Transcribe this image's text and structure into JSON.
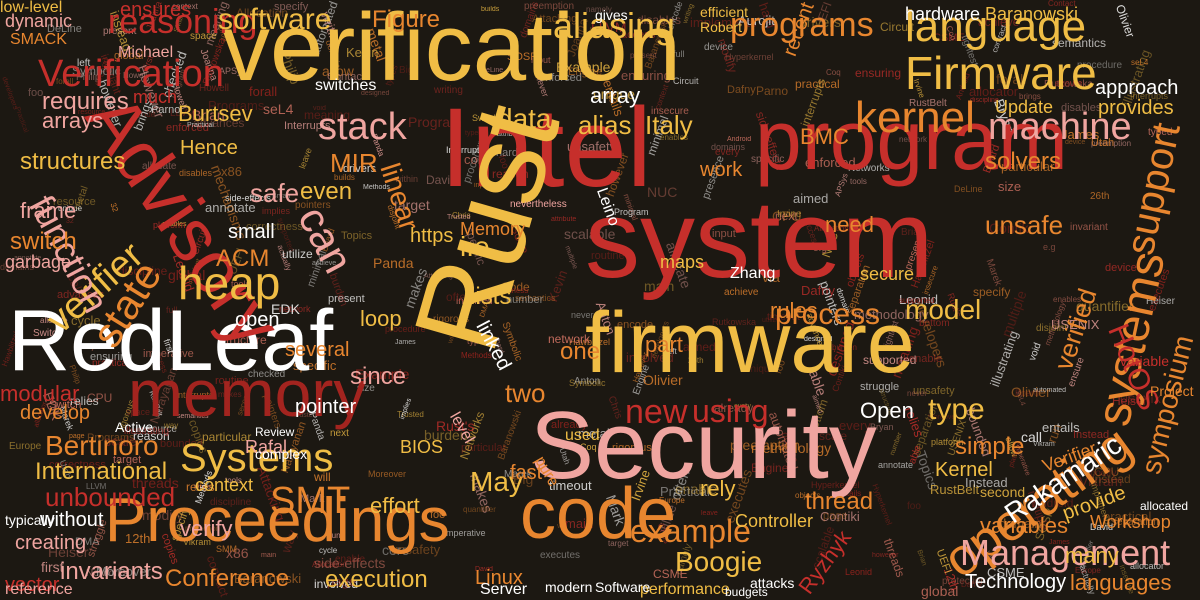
{
  "palette": {
    "background": "#1c1812",
    "red": "#c62f2b",
    "dark_red": "#a3241f",
    "orange": "#e8862f",
    "yellow": "#f0bd45",
    "pink": "#f0a5a0",
    "salmon": "#e07a6a",
    "white": "#ffffff"
  },
  "words": [
    {
      "text": "verification",
      "color": "yellow"
    },
    {
      "text": "Intel",
      "color": "red"
    },
    {
      "text": "Rust",
      "color": "yellow"
    },
    {
      "text": "system",
      "color": "red"
    },
    {
      "text": "program",
      "color": "red"
    },
    {
      "text": "firmware",
      "color": "yellow"
    },
    {
      "text": "Security",
      "color": "pink"
    },
    {
      "text": "RedLeaf",
      "color": "white"
    },
    {
      "text": "Advisory",
      "color": "red"
    },
    {
      "text": "memory",
      "color": "dark_red"
    },
    {
      "text": "code",
      "color": "orange"
    },
    {
      "text": "Proceedings",
      "color": "orange"
    },
    {
      "text": "operating",
      "color": "orange"
    },
    {
      "text": "Firmware",
      "color": "yellow"
    },
    {
      "text": "language",
      "color": "yellow"
    },
    {
      "text": "kernel",
      "color": "orange"
    },
    {
      "text": "machine",
      "color": "pink"
    },
    {
      "text": "Verification",
      "color": "red"
    },
    {
      "text": "stack",
      "color": "pink"
    },
    {
      "text": "heap",
      "color": "yellow"
    },
    {
      "text": "state",
      "color": "orange"
    },
    {
      "text": "verifier",
      "color": "yellow"
    },
    {
      "text": "function",
      "color": "pink"
    },
    {
      "text": "Systems",
      "color": "yellow"
    },
    {
      "text": "SMT",
      "color": "orange"
    },
    {
      "text": "Management",
      "color": "pink"
    },
    {
      "text": "example",
      "color": "orange"
    },
    {
      "text": "process",
      "color": "orange"
    },
    {
      "text": "model",
      "color": "yellow"
    },
    {
      "text": "systems",
      "color": "orange"
    },
    {
      "text": "support",
      "color": "orange"
    },
    {
      "text": "reasoning",
      "color": "red"
    },
    {
      "text": "software",
      "color": "yellow"
    },
    {
      "text": "aliasing",
      "color": "yellow"
    },
    {
      "text": "programs",
      "color": "orange"
    },
    {
      "text": "Figure",
      "color": "orange"
    },
    {
      "text": "Boogie",
      "color": "yellow"
    },
    {
      "text": "unbounded",
      "color": "red"
    },
    {
      "text": "Bertinoro",
      "color": "orange"
    },
    {
      "text": "International",
      "color": "yellow"
    },
    {
      "text": "Conference",
      "color": "orange"
    },
    {
      "text": "execution",
      "color": "yellow"
    },
    {
      "text": "invariants",
      "color": "pink"
    },
    {
      "text": "variables",
      "color": "orange"
    },
    {
      "text": "Workshop",
      "color": "orange"
    },
    {
      "text": "Technology",
      "color": "white"
    },
    {
      "text": "Rakamaric",
      "color": "white"
    },
    {
      "text": "verified",
      "color": "orange"
    },
    {
      "text": "HotOS",
      "color": "red"
    },
    {
      "text": "symposium",
      "color": "orange"
    },
    {
      "text": "Open",
      "color": "white"
    },
    {
      "text": "type",
      "color": "yellow"
    },
    {
      "text": "new",
      "color": "red"
    },
    {
      "text": "using",
      "color": "red"
    },
    {
      "text": "data",
      "color": "yellow"
    },
    {
      "text": "alias",
      "color": "yellow"
    },
    {
      "text": "Italy",
      "color": "yellow"
    },
    {
      "text": "safe",
      "color": "pink"
    },
    {
      "text": "MIR",
      "color": "orange"
    },
    {
      "text": "even",
      "color": "yellow"
    },
    {
      "text": "ACM",
      "color": "orange"
    },
    {
      "text": "i.e",
      "color": "yellow"
    },
    {
      "text": "can",
      "color": "pink"
    },
    {
      "text": "linear",
      "color": "orange"
    },
    {
      "text": "Burtsev",
      "color": "yellow"
    },
    {
      "text": "requires",
      "color": "pink"
    },
    {
      "text": "arrays",
      "color": "pink"
    },
    {
      "text": "structures",
      "color": "yellow"
    },
    {
      "text": "frame",
      "color": "pink"
    },
    {
      "text": "switch",
      "color": "orange"
    },
    {
      "text": "garbage",
      "color": "pink"
    },
    {
      "text": "modular",
      "color": "red"
    },
    {
      "text": "develop",
      "color": "orange"
    },
    {
      "text": "context",
      "color": "yellow"
    },
    {
      "text": "Rafal",
      "color": "pink"
    },
    {
      "text": "verify",
      "color": "pink"
    },
    {
      "text": "May",
      "color": "yellow"
    },
    {
      "text": "effort",
      "color": "yellow"
    },
    {
      "text": "creating",
      "color": "pink"
    },
    {
      "text": "without",
      "color": "white"
    },
    {
      "text": "vector",
      "color": "red"
    },
    {
      "text": "loop",
      "color": "yellow"
    },
    {
      "text": "since",
      "color": "pink"
    },
    {
      "text": "two",
      "color": "orange"
    },
    {
      "text": "one",
      "color": "orange"
    },
    {
      "text": "linked",
      "color": "white"
    },
    {
      "text": "open",
      "color": "white"
    },
    {
      "text": "several",
      "color": "orange"
    },
    {
      "text": "small",
      "color": "white"
    },
    {
      "text": "lists",
      "color": "yellow"
    },
    {
      "text": "part",
      "color": "orange"
    },
    {
      "text": "rules",
      "color": "orange"
    },
    {
      "text": "rely",
      "color": "yellow"
    },
    {
      "text": "fast",
      "color": "orange"
    },
    {
      "text": "thread",
      "color": "orange"
    },
    {
      "text": "simple",
      "color": "orange"
    },
    {
      "text": "Ryzhyk",
      "color": "red"
    },
    {
      "text": "Linux",
      "color": "orange"
    },
    {
      "text": "many",
      "color": "yellow"
    },
    {
      "text": "languages",
      "color": "orange"
    },
    {
      "text": "provide",
      "color": "yellow"
    },
    {
      "text": "Kernel",
      "color": "yellow"
    },
    {
      "text": "unsafe",
      "color": "orange"
    },
    {
      "text": "need",
      "color": "orange"
    },
    {
      "text": "BMC",
      "color": "orange"
    },
    {
      "text": "solvers",
      "color": "orange"
    },
    {
      "text": "hardware",
      "color": "white"
    },
    {
      "text": "Baranowski",
      "color": "yellow"
    },
    {
      "text": "approach",
      "color": "white"
    },
    {
      "text": "provides",
      "color": "yellow"
    },
    {
      "text": "Update",
      "color": "yellow"
    },
    {
      "text": "switches",
      "color": "white"
    },
    {
      "text": "array",
      "color": "white"
    },
    {
      "text": "recent",
      "color": "orange"
    },
    {
      "text": "ensures",
      "color": "red"
    },
    {
      "text": "dynamic",
      "color": "pink"
    },
    {
      "text": "low-level",
      "color": "yellow"
    },
    {
      "text": "much",
      "color": "red"
    },
    {
      "text": "Hence",
      "color": "yellow"
    },
    {
      "text": "pointer",
      "color": "white"
    },
    {
      "text": "work",
      "color": "orange"
    },
    {
      "text": "https",
      "color": "yellow"
    },
    {
      "text": "maps",
      "color": "yellow"
    },
    {
      "text": "secure",
      "color": "yellow"
    },
    {
      "text": "Zhang",
      "color": "white"
    },
    {
      "text": "BIOS",
      "color": "yellow"
    },
    {
      "text": "level",
      "color": "pink"
    },
    {
      "text": "used",
      "color": "yellow"
    },
    {
      "text": "Verifier",
      "color": "orange"
    },
    {
      "text": "Controller",
      "color": "yellow"
    },
    {
      "text": "Server",
      "color": "white"
    },
    {
      "text": "reference",
      "color": "pink"
    },
    {
      "text": "Leino",
      "color": "white"
    },
    {
      "text": "Memory",
      "color": "orange"
    },
    {
      "text": "SMACK",
      "color": "orange"
    },
    {
      "text": "Michael",
      "color": "pink"
    },
    {
      "text": "performance",
      "color": "yellow"
    },
    {
      "text": "attacks",
      "color": "white"
    },
    {
      "text": "budgets",
      "color": "white"
    },
    {
      "text": "modern",
      "color": "white"
    },
    {
      "text": "Software",
      "color": "white"
    },
    {
      "text": "allocated",
      "color": "white"
    },
    {
      "text": "complex",
      "color": "white"
    },
    {
      "text": "Review",
      "color": "white"
    },
    {
      "text": "gives",
      "color": "white"
    },
    {
      "text": "nevertheless",
      "color": "pink"
    },
    {
      "text": "efficient",
      "color": "yellow"
    },
    {
      "text": "Robert",
      "color": "yellow"
    },
    {
      "text": "typically",
      "color": "white"
    },
    {
      "text": "Active",
      "color": "white"
    },
    {
      "text": "Project",
      "color": "orange"
    },
    {
      "text": "variable",
      "color": "red"
    },
    {
      "text": "pure",
      "color": "orange"
    }
  ],
  "filler_words": [
    "Baranowski",
    "allocate",
    "pointers",
    "quantifier",
    "Engine",
    "minimal",
    "device",
    "particular",
    "present",
    "Panda",
    "foo",
    "CSME",
    "disables",
    "objects",
    "SOSP",
    "enforced",
    "semantics",
    "Android",
    "allocator",
    "metal",
    "Hawblitzel",
    "Europe",
    "designed",
    "resource",
    "rigorous",
    "automated",
    "separation",
    "USENIX",
    "Networks",
    "Leonid",
    "Attacking",
    "advances",
    "LLVM",
    "tools",
    "annotate",
    "invariant",
    "page",
    "typed",
    "achieve",
    "domain",
    "modify",
    "burden",
    "Vikram",
    "Circuit",
    "procedure",
    "methodology",
    "enables",
    "Marek",
    "unique",
    "access",
    "network",
    "Joanna",
    "global",
    "Bryan",
    "utilize",
    "David",
    "UEFI",
    "never",
    "second",
    "input",
    "CPU",
    "specific",
    "multiple",
    "discipline",
    "domains",
    "Symbolic",
    "Moreover",
    "imperative",
    "RustBelt",
    "Hyperkernel",
    "specify",
    "preemption",
    "however",
    "Practical",
    "developers",
    "Switch",
    "Board",
    "Coq",
    "seL4",
    "Interrupts",
    "Methods",
    "Trusted",
    "platform",
    "correctness",
    "writing",
    "Program",
    "meaning",
    "ensuring",
    "Dafny",
    "Philip",
    "Contiki",
    "entails",
    "Olivier",
    "Utah",
    "Irvine",
    "Chris",
    "hard",
    "disjoint",
    "first",
    "main",
    "forall",
    "DeLine",
    "Brian",
    "relies",
    "Heiser",
    "James",
    "Howell",
    "practical",
    "insecure",
    "target",
    "every",
    "executes",
    "illustrating",
    "enable",
    "Rutkowska",
    "unsafety",
    "supported",
    "Allocation",
    "involved",
    "aimed",
    "makes",
    "side-effects",
    "DMA",
    "routine",
    "implements",
    "reason",
    "left",
    "presence",
    "bounded",
    "timeout",
    "Topics",
    "ensure",
    "contract",
    "namely",
    "EDK",
    "Mark",
    "often",
    "instead",
    "allow",
    "scale",
    "encode",
    "builds",
    "call",
    "way",
    "will",
    "via",
    "run",
    "able",
    "number",
    "x86",
    "Rust's",
    "types",
    "void",
    "full",
    "Code",
    "Anton",
    "12th",
    "26th",
    "Kevin",
    "However",
    "Parno",
    "attribute",
    "Example",
    "already",
    "bottom",
    "threads",
    "copies",
    "brings",
    "struggle",
    "Instead",
    "space",
    "leave",
    "tightest",
    "mechanisms",
    "Aurojit",
    "actually",
    "implies",
    "context",
    "cycle",
    "drivers",
    "structure",
    "Programs",
    "Contact",
    "SMM",
    "within",
    "NUC",
    "next",
    "Big",
    "foo",
    "core",
    "size",
    "32",
    "e.g",
    "APSys",
    "Narayanan",
    "protection",
    "scalable",
    "interrupts",
    "checked"
  ]
}
